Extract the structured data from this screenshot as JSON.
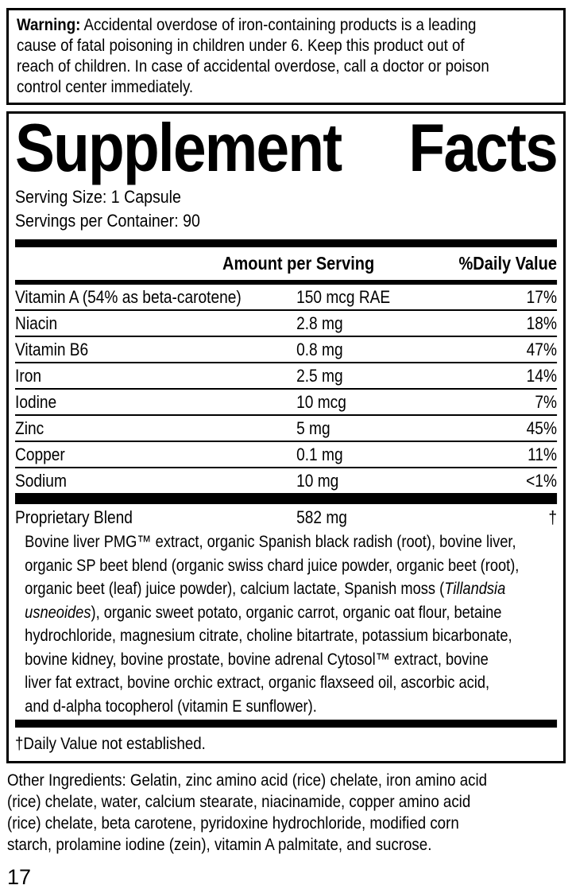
{
  "colors": {
    "text": "#000000",
    "background": "#ffffff",
    "border": "#000000"
  },
  "warning": {
    "lines": [
      [
        {
          "t": "Warning:",
          "b": true
        },
        {
          "t": " Accidental overdose of iron-containing products is a leading"
        }
      ],
      [
        {
          "t": "cause of fatal poisoning in children under 6. Keep this product out of"
        }
      ],
      [
        {
          "t": "reach of children. In case of accidental overdose, call a doctor or poison"
        }
      ],
      [
        {
          "t": "control center immediately."
        }
      ]
    ]
  },
  "panel": {
    "title": {
      "left": "Supplement",
      "right": "Facts"
    },
    "serving_size": "Serving Size: 1 Capsule",
    "servings_per_container": "Servings per Container: 90",
    "header": {
      "amount": "Amount per Serving",
      "daily_value": "%Daily Value"
    },
    "rows": [
      {
        "name": "Vitamin A (54% as beta-carotene)",
        "amount": "150 mcg RAE",
        "daily_value": "17%"
      },
      {
        "name": "Niacin",
        "amount": "2.8 mg",
        "daily_value": "18%"
      },
      {
        "name": "Vitamin B6",
        "amount": "0.8 mg",
        "daily_value": "47%"
      },
      {
        "name": "Iron",
        "amount": "2.5 mg",
        "daily_value": "14%"
      },
      {
        "name": "Iodine",
        "amount": "10 mcg",
        "daily_value": "7%"
      },
      {
        "name": "Zinc",
        "amount": "5 mg",
        "daily_value": "45%"
      },
      {
        "name": "Copper",
        "amount": "0.1 mg",
        "daily_value": "11%"
      },
      {
        "name": "Sodium",
        "amount": "10 mg",
        "daily_value": "<1%"
      }
    ],
    "proprietary_blend": {
      "name": "Proprietary Blend",
      "amount": "582 mg",
      "daily_value": "†"
    },
    "blend_description_lines": [
      [
        {
          "t": "Bovine liver PMG™ extract, organic Spanish black radish (root), bovine liver,"
        }
      ],
      [
        {
          "t": "organic SP beet blend (organic swiss chard juice powder, organic beet (root),"
        }
      ],
      [
        {
          "t": "organic beet (leaf) juice powder), calcium lactate, Spanish moss ("
        },
        {
          "t": "Tillandsia",
          "i": true
        }
      ],
      [
        {
          "t": "usneoides",
          "i": true
        },
        {
          "t": "), organic sweet potato, organic carrot, organic oat flour, betaine"
        }
      ],
      [
        {
          "t": "hydrochloride, magnesium citrate, choline bitartrate, potassium bicarbonate,"
        }
      ],
      [
        {
          "t": "bovine kidney, bovine prostate, bovine adrenal Cytosol™ extract, bovine"
        }
      ],
      [
        {
          "t": "liver fat extract, bovine orchic extract, organic flaxseed oil, ascorbic acid,"
        }
      ],
      [
        {
          "t": "and d-alpha tocopherol (vitamin E sunflower)."
        }
      ]
    ],
    "footnote": "†Daily Value not established."
  },
  "other_ingredients": {
    "lines": [
      [
        {
          "t": "Other Ingredients: Gelatin, zinc amino acid (rice) chelate, iron amino acid"
        }
      ],
      [
        {
          "t": "(rice) chelate, water, calcium stearate, niacinamide, copper amino acid"
        }
      ],
      [
        {
          "t": "(rice) chelate, beta carotene, pyridoxine hydrochloride, modified corn"
        }
      ],
      [
        {
          "t": "starch, prolamine iodine (zein), vitamin A palmitate, and sucrose."
        }
      ]
    ]
  },
  "page_number": "17"
}
